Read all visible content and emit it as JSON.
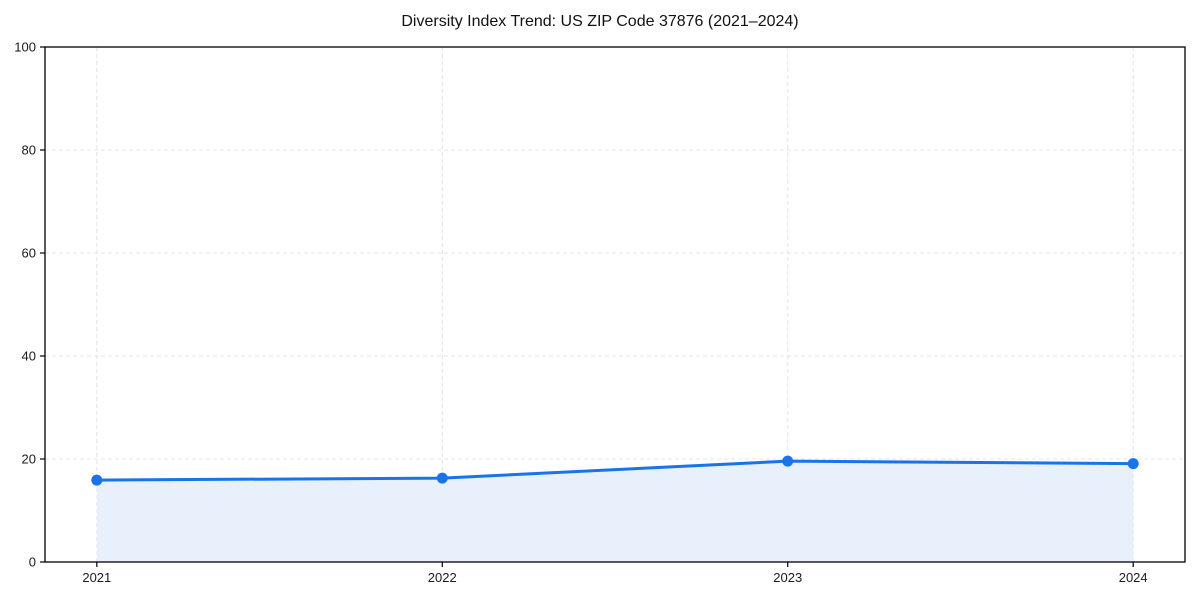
{
  "chart_data": {
    "type": "area",
    "title": "Diversity Index Trend: US ZIP Code 37876 (2021–2024)",
    "categories": [
      "2021",
      "2022",
      "2023",
      "2024"
    ],
    "x": [
      2021,
      2022,
      2023,
      2024
    ],
    "values": [
      15.9,
      16.3,
      19.6,
      19.1
    ],
    "series_name": "Diversity Index",
    "xlabel": "",
    "ylabel": "",
    "xlim": [
      2020.85,
      2024.15
    ],
    "ylim": [
      0,
      100
    ],
    "yticks": [
      0,
      20,
      40,
      60,
      80,
      100
    ],
    "grid": "dashed-both",
    "legend_position": "none",
    "colors": {
      "line": "#1a73e8",
      "marker": "#1a73e8",
      "fill": "#e8f0fc",
      "grid": "#e4e4e4",
      "axis": "#000000",
      "tick_text": "#1a1a1a",
      "title_text": "#111111",
      "background": "#ffffff"
    }
  }
}
